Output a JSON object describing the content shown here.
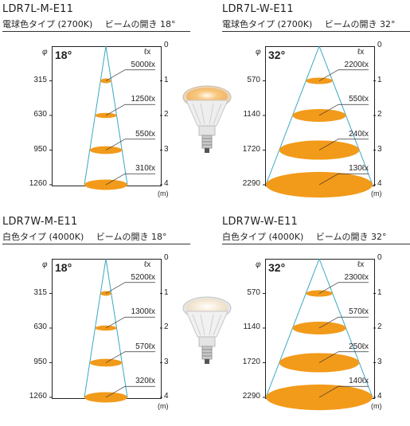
{
  "colors": {
    "ellipse": "#f29a1a",
    "cone": "#3aa8c1",
    "leader": "#333333"
  },
  "axis": {
    "phi_symbol": "φ",
    "lux_symbol": "ℓx",
    "distance_ticks": [
      "0",
      "1",
      "2",
      "3",
      "4"
    ],
    "unit": "(m)"
  },
  "panels": [
    {
      "model": "LDR7L-M-E11",
      "color_label": "電球色タイプ (2700K)",
      "beam_label": "ビームの開き 18°",
      "angle": "18°",
      "diameters": [
        "315",
        "630",
        "950",
        "1260"
      ],
      "lux": [
        "5000ℓx",
        "1250ℓx",
        "550ℓx",
        "310ℓx"
      ],
      "diameter_values_mm": [
        315,
        630,
        950,
        1260
      ],
      "lux_values": [
        5000,
        1250,
        550,
        310
      ]
    },
    {
      "model": "LDR7L-W-E11",
      "color_label": "電球色タイプ (2700K)",
      "beam_label": "ビームの開き 32°",
      "angle": "32°",
      "diameters": [
        "570",
        "1140",
        "1720",
        "2290"
      ],
      "lux": [
        "2200ℓx",
        "550ℓx",
        "240ℓx",
        "130ℓx"
      ],
      "diameter_values_mm": [
        570,
        1140,
        1720,
        2290
      ],
      "lux_values": [
        2200,
        550,
        240,
        130
      ]
    },
    {
      "model": "LDR7W-M-E11",
      "color_label": "白色タイプ (4000K)",
      "beam_label": "ビームの開き 18°",
      "angle": "18°",
      "diameters": [
        "315",
        "630",
        "950",
        "1260"
      ],
      "lux": [
        "5200ℓx",
        "1300ℓx",
        "570ℓx",
        "320ℓx"
      ],
      "diameter_values_mm": [
        315,
        630,
        950,
        1260
      ],
      "lux_values": [
        5200,
        1300,
        570,
        320
      ]
    },
    {
      "model": "LDR7W-W-E11",
      "color_label": "白色タイプ (4000K)",
      "beam_label": "ビームの開き 32°",
      "angle": "32°",
      "diameters": [
        "570",
        "1140",
        "1720",
        "2290"
      ],
      "lux": [
        "2300ℓx",
        "570ℓx",
        "250ℓx",
        "140ℓx"
      ],
      "diameter_values_mm": [
        570,
        1140,
        1720,
        2290
      ],
      "lux_values": [
        2300,
        570,
        250,
        140
      ]
    }
  ],
  "bulbs": [
    {
      "name": "warm-bulb",
      "glow": "#f8c980",
      "glow_edge": "#fbe3bb"
    },
    {
      "name": "white-bulb",
      "glow": "#f7ecd9",
      "glow_edge": "#fbf7ef"
    }
  ]
}
